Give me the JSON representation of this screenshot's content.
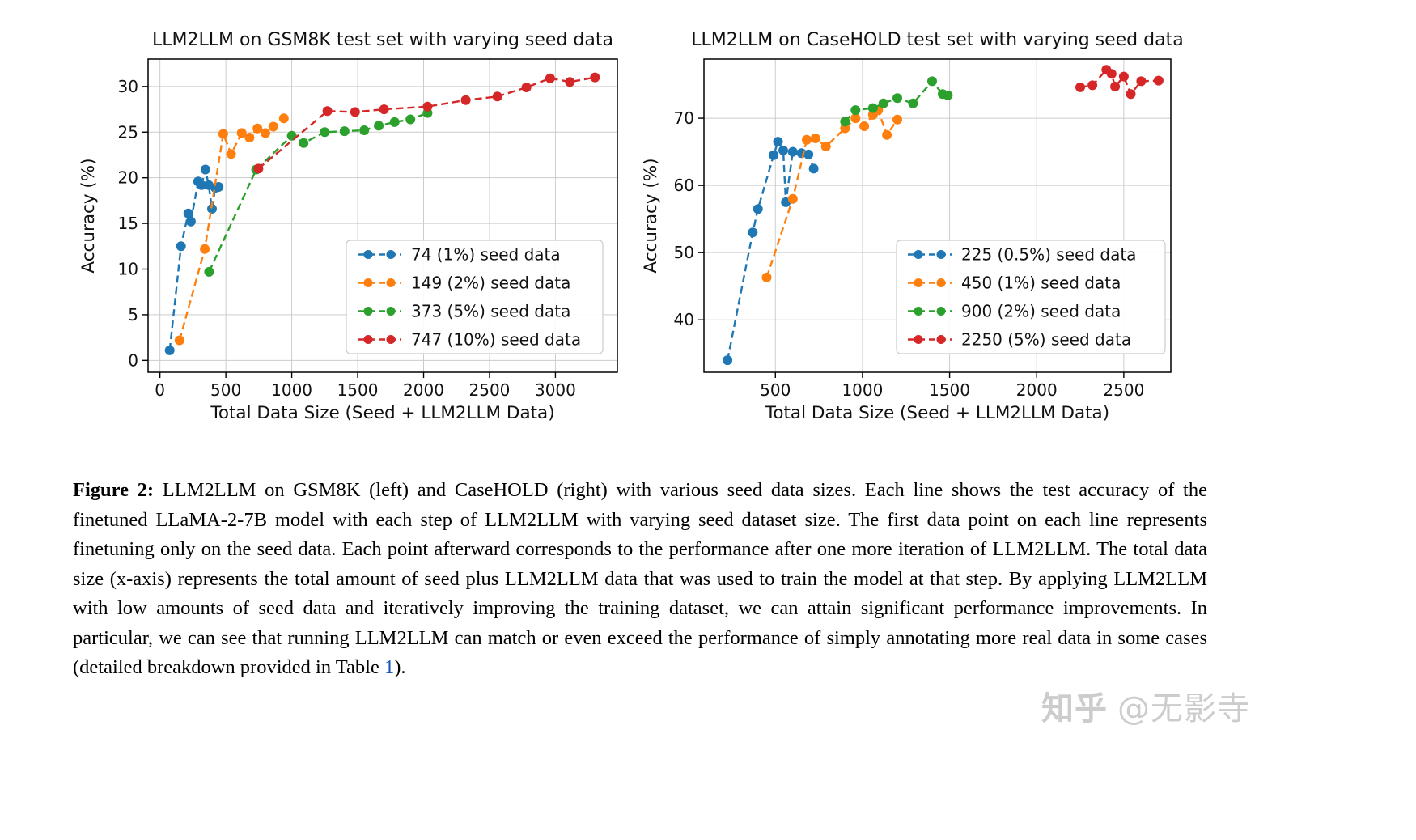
{
  "figure": {
    "caption": {
      "label": "Figure 2:",
      "text_before_link": " LLM2LLM on GSM8K (left) and CaseHOLD (right) with various seed data sizes. Each line shows the test accuracy of the finetuned LLaMA-2-7B model with each step of LLM2LLM with varying seed dataset size. The first data point on each line represents finetuning only on the seed data. Each point afterward corresponds to the performance after one more iteration of LLM2LLM. The total data size (x-axis) represents the total amount of seed plus LLM2LLM data that was used to train the model at that step. By applying LLM2LLM with low amounts of seed data and iteratively improving the training dataset, we can attain significant performance improvements. In particular, we can see that running LLM2LLM can match or even exceed the performance of simply annotating more real data in some cases (detailed breakdown provided in Table ",
      "link_text": "1",
      "text_after_link": ")."
    },
    "watermark": {
      "brand": "知乎",
      "handle": "@无影寺"
    }
  },
  "chart_data": [
    {
      "type": "line",
      "title": "LLM2LLM on GSM8K test set with varying seed data",
      "xlabel": "Total Data Size (Seed + LLM2LLM Data)",
      "ylabel": "Accuracy (%)",
      "xlim": [
        -90,
        3470
      ],
      "ylim": [
        -1.3,
        33.0
      ],
      "xticks": [
        0,
        500,
        1000,
        1500,
        2000,
        2500,
        3000
      ],
      "yticks": [
        0,
        5,
        10,
        15,
        20,
        25,
        30
      ],
      "grid": true,
      "legend_loc": "lower right",
      "series": [
        {
          "name": "74 (1%) seed data",
          "color": "#1f77b4",
          "points": [
            [
              74,
              1.1
            ],
            [
              160,
              12.5
            ],
            [
              215,
              16.1
            ],
            [
              235,
              15.2
            ],
            [
              290,
              19.6
            ],
            [
              315,
              19.2
            ],
            [
              345,
              20.9
            ],
            [
              370,
              19.2
            ],
            [
              395,
              16.6
            ],
            [
              420,
              18.9
            ],
            [
              445,
              19.0
            ]
          ]
        },
        {
          "name": "149 (2%) seed data",
          "color": "#ff7f0e",
          "points": [
            [
              149,
              2.2
            ],
            [
              340,
              12.2
            ],
            [
              480,
              24.8
            ],
            [
              540,
              22.6
            ],
            [
              620,
              24.9
            ],
            [
              680,
              24.4
            ],
            [
              740,
              25.4
            ],
            [
              800,
              24.9
            ],
            [
              860,
              25.6
            ],
            [
              940,
              26.5
            ]
          ]
        },
        {
          "name": "373 (5%) seed data",
          "color": "#2ca02c",
          "points": [
            [
              373,
              9.7
            ],
            [
              730,
              20.9
            ],
            [
              1000,
              24.6
            ],
            [
              1090,
              23.8
            ],
            [
              1250,
              25.0
            ],
            [
              1400,
              25.1
            ],
            [
              1550,
              25.2
            ],
            [
              1660,
              25.7
            ],
            [
              1780,
              26.1
            ],
            [
              1900,
              26.4
            ],
            [
              2030,
              27.1
            ]
          ]
        },
        {
          "name": "747 (10%) seed data",
          "color": "#d62728",
          "points": [
            [
              747,
              21.0
            ],
            [
              1270,
              27.3
            ],
            [
              1480,
              27.2
            ],
            [
              1700,
              27.5
            ],
            [
              2030,
              27.8
            ],
            [
              2320,
              28.5
            ],
            [
              2560,
              28.9
            ],
            [
              2780,
              29.9
            ],
            [
              2960,
              30.9
            ],
            [
              3110,
              30.5
            ],
            [
              3300,
              31.0
            ]
          ]
        }
      ]
    },
    {
      "type": "line",
      "title": "LLM2LLM on CaseHOLD test set with varying seed data",
      "xlabel": "Total Data Size (Seed + LLM2LLM Data)",
      "ylabel": "Accuracy (%)",
      "xlim": [
        90,
        2770
      ],
      "ylim": [
        32.2,
        78.8
      ],
      "xticks": [
        500,
        1000,
        1500,
        2000,
        2500
      ],
      "yticks": [
        40,
        50,
        60,
        70
      ],
      "grid": true,
      "legend_loc": "lower right",
      "series": [
        {
          "name": "225 (0.5%) seed data",
          "color": "#1f77b4",
          "points": [
            [
              225,
              34.0
            ],
            [
              370,
              53.0
            ],
            [
              400,
              56.5
            ],
            [
              490,
              64.5
            ],
            [
              515,
              66.5
            ],
            [
              545,
              65.2
            ],
            [
              560,
              57.5
            ],
            [
              600,
              65.0
            ],
            [
              650,
              64.8
            ],
            [
              690,
              64.6
            ],
            [
              720,
              62.5
            ]
          ]
        },
        {
          "name": "450 (1%) seed data",
          "color": "#ff7f0e",
          "points": [
            [
              450,
              46.3
            ],
            [
              600,
              58.0
            ],
            [
              680,
              66.8
            ],
            [
              730,
              67.0
            ],
            [
              790,
              65.8
            ],
            [
              900,
              68.5
            ],
            [
              960,
              70.0
            ],
            [
              1010,
              68.8
            ],
            [
              1060,
              70.5
            ],
            [
              1090,
              71.2
            ],
            [
              1140,
              67.5
            ],
            [
              1200,
              69.8
            ]
          ]
        },
        {
          "name": "900 (2%) seed data",
          "color": "#2ca02c",
          "points": [
            [
              900,
              69.5
            ],
            [
              960,
              71.2
            ],
            [
              1060,
              71.5
            ],
            [
              1120,
              72.2
            ],
            [
              1200,
              73.0
            ],
            [
              1290,
              72.2
            ],
            [
              1400,
              75.5
            ],
            [
              1460,
              73.6
            ],
            [
              1490,
              73.4
            ]
          ]
        },
        {
          "name": "2250 (5%) seed data",
          "color": "#d62728",
          "points": [
            [
              2250,
              74.6
            ],
            [
              2320,
              74.9
            ],
            [
              2400,
              77.2
            ],
            [
              2430,
              76.6
            ],
            [
              2450,
              74.7
            ],
            [
              2500,
              76.2
            ],
            [
              2540,
              73.6
            ],
            [
              2600,
              75.5
            ],
            [
              2700,
              75.6
            ]
          ]
        }
      ]
    }
  ]
}
